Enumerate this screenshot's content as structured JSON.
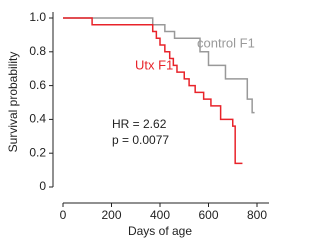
{
  "chart_data": {
    "type": "line",
    "step": "post",
    "x_label": "Days of age",
    "y_label": "Survival probability",
    "annotations": [
      "HR = 2.62",
      "p = 0.0077"
    ],
    "xlim": [
      0,
      800
    ],
    "ylim": [
      0,
      1
    ],
    "xticks": [
      0,
      200,
      400,
      600,
      800
    ],
    "yticks": [
      0,
      0.2,
      0.4,
      0.6,
      0.8,
      {
        "value": 1,
        "label": "1.0"
      }
    ],
    "grid": false,
    "series": [
      {
        "name": "control F1",
        "color": "#999999",
        "x": [
          0,
          370,
          420,
          460,
          565,
          600,
          670,
          760,
          780,
          790
        ],
        "values": [
          1,
          0.96,
          0.92,
          0.88,
          0.8,
          0.72,
          0.64,
          0.52,
          0.44,
          0.44
        ]
      },
      {
        "name": "Utx F1",
        "color": "#e8232a",
        "x": [
          0,
          120,
          370,
          385,
          400,
          420,
          440,
          455,
          470,
          500,
          520,
          545,
          580,
          610,
          650,
          700,
          710,
          740
        ],
        "values": [
          1,
          0.96,
          0.92,
          0.88,
          0.84,
          0.8,
          0.76,
          0.72,
          0.68,
          0.64,
          0.6,
          0.56,
          0.52,
          0.48,
          0.4,
          0.36,
          0.14,
          0.14
        ]
      }
    ]
  }
}
